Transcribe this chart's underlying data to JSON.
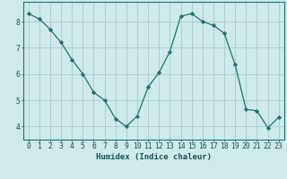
{
  "x": [
    0,
    1,
    2,
    3,
    4,
    5,
    6,
    7,
    8,
    9,
    10,
    11,
    12,
    13,
    14,
    15,
    16,
    17,
    18,
    19,
    20,
    21,
    22,
    23
  ],
  "y": [
    8.3,
    8.1,
    7.7,
    7.2,
    6.55,
    6.0,
    5.3,
    5.0,
    4.3,
    4.0,
    4.4,
    5.5,
    6.05,
    6.85,
    8.2,
    8.3,
    8.0,
    7.85,
    7.55,
    6.35,
    4.65,
    4.6,
    3.95,
    4.35
  ],
  "line_color": "#267070",
  "marker": "D",
  "marker_size": 2.2,
  "bg_color": "#ceeaea",
  "grid_color": "#a8cccc",
  "axis_color": "#267070",
  "xlabel": "Humidex (Indice chaleur)",
  "xlim": [
    -0.5,
    23.5
  ],
  "ylim": [
    3.5,
    8.75
  ],
  "yticks": [
    4,
    5,
    6,
    7,
    8
  ],
  "xticks": [
    0,
    1,
    2,
    3,
    4,
    5,
    6,
    7,
    8,
    9,
    10,
    11,
    12,
    13,
    14,
    15,
    16,
    17,
    18,
    19,
    20,
    21,
    22,
    23
  ],
  "xlabel_fontsize": 6.5,
  "tick_fontsize": 5.8,
  "label_color": "#1a5050"
}
